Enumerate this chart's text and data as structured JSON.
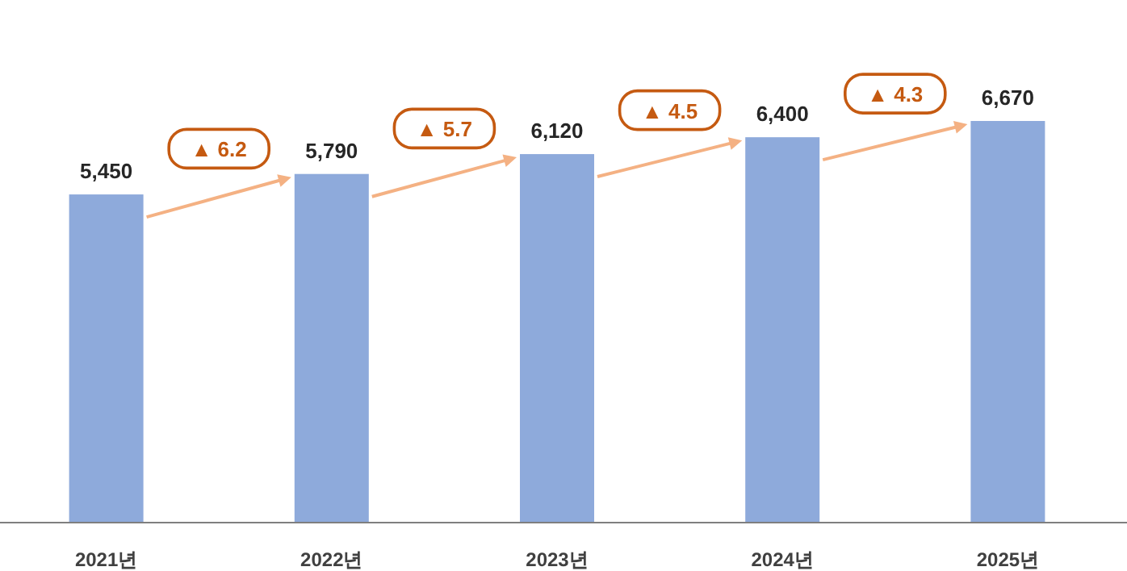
{
  "chart_data": {
    "type": "bar",
    "categories": [
      "2021년",
      "2022년",
      "2023년",
      "2024년",
      "2025년"
    ],
    "values": [
      5450,
      5790,
      6120,
      6400,
      6670
    ],
    "color": "#8eaadb",
    "value_labels": [
      "5,450",
      "5,790",
      "6,120",
      "6,400",
      "6,670"
    ],
    "annotations": [
      "▲ 6.2",
      "▲ 5.7",
      "▲ 4.5",
      "▲ 4.3"
    ]
  }
}
